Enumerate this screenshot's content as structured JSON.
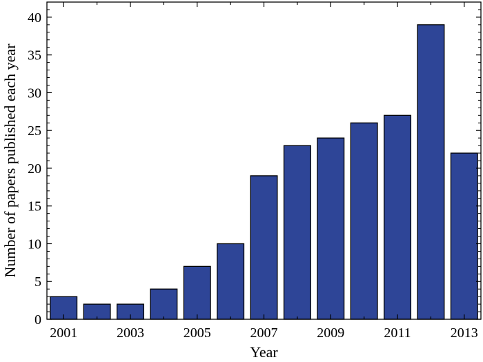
{
  "chart_data": {
    "type": "bar",
    "title": "",
    "xlabel": "Year",
    "ylabel": "Number of papers published each year",
    "categories": [
      "2001",
      "2002",
      "2003",
      "2004",
      "2005",
      "2006",
      "2007",
      "2008",
      "2009",
      "2010",
      "2011",
      "2012",
      "2013"
    ],
    "values": [
      3,
      2,
      2,
      4,
      7,
      10,
      19,
      23,
      24,
      26,
      27,
      39,
      22
    ],
    "x_tick_labels": [
      "2001",
      "2003",
      "2005",
      "2007",
      "2009",
      "2011",
      "2013"
    ],
    "y_ticks": [
      "0",
      "5",
      "10",
      "15",
      "20",
      "25",
      "30",
      "35",
      "40"
    ],
    "ylim": [
      0,
      42
    ],
    "grid": false,
    "bar_color": "#2e4597",
    "bar_edge_color": "#000000"
  }
}
